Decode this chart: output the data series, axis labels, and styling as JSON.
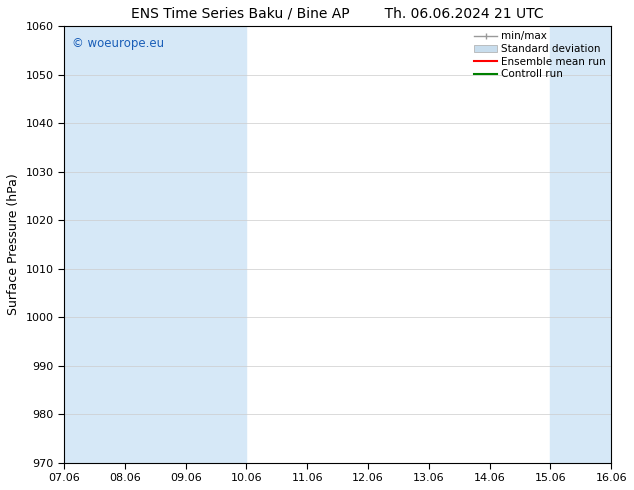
{
  "title": "ENS Time Series Baku / Bine AP",
  "title_right": "Th. 06.06.2024 21 UTC",
  "ylabel": "Surface Pressure (hPa)",
  "ylim": [
    970,
    1060
  ],
  "yticks": [
    970,
    980,
    990,
    1000,
    1010,
    1020,
    1030,
    1040,
    1050,
    1060
  ],
  "xtick_labels": [
    "07.06",
    "08.06",
    "09.06",
    "10.06",
    "11.06",
    "12.06",
    "13.06",
    "14.06",
    "15.06",
    "16.06"
  ],
  "shaded_bands": [
    {
      "xmin": 0,
      "xmax": 1,
      "color": "#d6e8f7"
    },
    {
      "xmin": 1,
      "xmax": 3,
      "color": "#d6e8f7"
    },
    {
      "xmin": 8,
      "xmax": 9,
      "color": "#d6e8f7"
    }
  ],
  "watermark": "© woeurope.eu",
  "watermark_color": "#1a5eb8",
  "background_color": "#ffffff",
  "legend_labels": [
    "min/max",
    "Standard deviation",
    "Ensemble mean run",
    "Controll run"
  ],
  "legend_colors": [
    "#aaaaaa",
    "#c8dded",
    "red",
    "green"
  ],
  "title_fontsize": 10,
  "ylabel_fontsize": 9,
  "tick_fontsize": 8
}
